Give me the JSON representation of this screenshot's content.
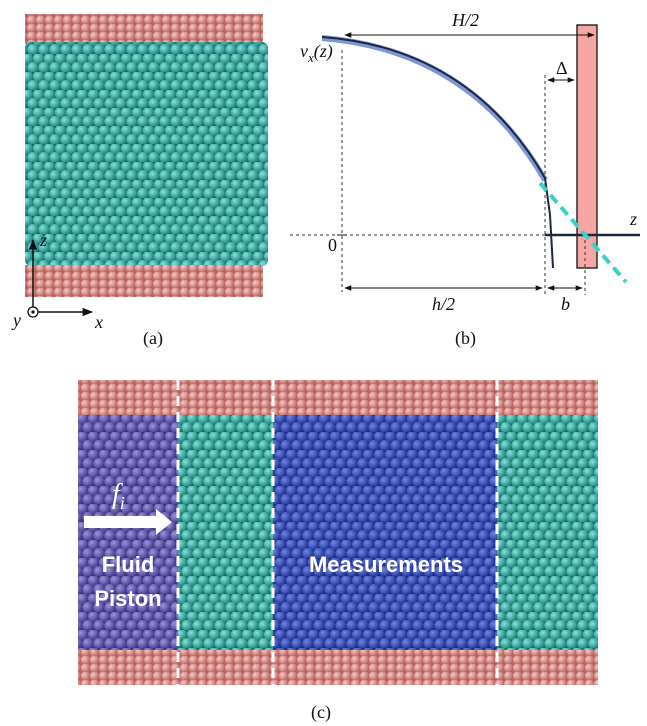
{
  "panels": {
    "a": {
      "label": "(a)",
      "axis_z": "z",
      "axis_y": "y",
      "axis_x": "x"
    },
    "b": {
      "label": "(b)",
      "H_half": "H/2",
      "velocity": {
        "symbol": "v",
        "subscript": "x",
        "argument": "(z)"
      },
      "delta": "Δ",
      "origin": "0",
      "axis_z": "z",
      "h_half": "h/2",
      "slip_length": "b"
    },
    "c": {
      "label": "(c)",
      "force": {
        "symbol": "f",
        "subscript": "i"
      },
      "piston": [
        "Fluid",
        "Piston"
      ],
      "measurements": "Measurements"
    }
  }
}
